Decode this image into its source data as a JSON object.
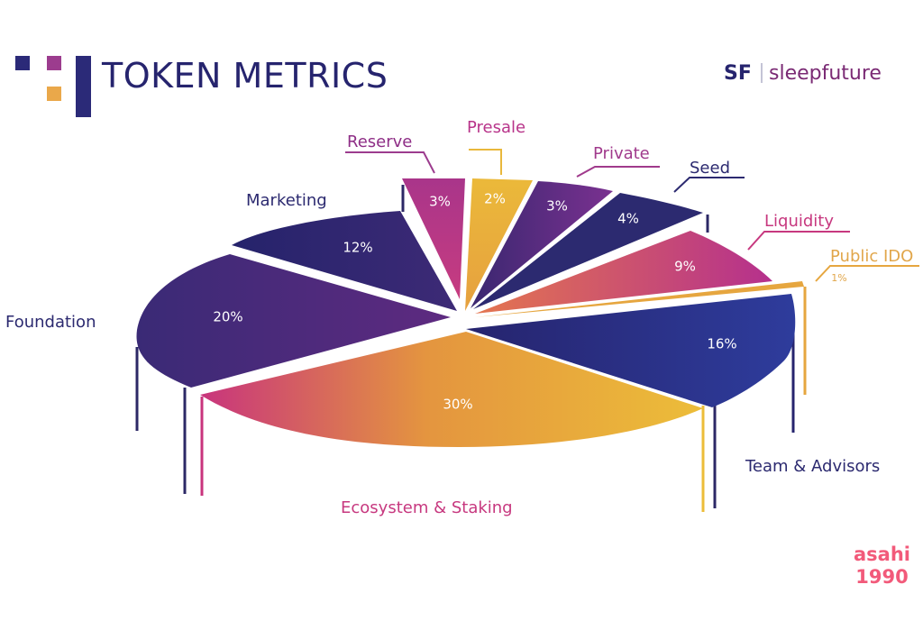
{
  "header": {
    "title": "TOKEN METRICS",
    "brand_mark": "SF",
    "brand_name": "sleepfuture"
  },
  "watermark": {
    "line1": "asahi",
    "line2": "1990"
  },
  "colors": {
    "navy": "#26246e",
    "purple": "#5b2d7a",
    "magenta": "#b8348a",
    "pink": "#d24e7e",
    "orange": "#e7a445",
    "yellow": "#e9b83c",
    "blue": "#2d3592"
  },
  "chart_data": {
    "type": "pie",
    "title": "TOKEN METRICS",
    "slices": [
      {
        "label": "Presale",
        "value": 2,
        "display": "2%",
        "color": "#e9b83c"
      },
      {
        "label": "Private",
        "value": 3,
        "display": "3%",
        "color": "#6a2f82"
      },
      {
        "label": "Seed",
        "value": 4,
        "display": "4%",
        "color": "#2e2c70"
      },
      {
        "label": "Liquidity",
        "value": 9,
        "display": "9%",
        "color": "#c0388a"
      },
      {
        "label": "Public IDO",
        "value": 1,
        "display": "1%",
        "color": "#e2a94a"
      },
      {
        "label": "Team & Advisors",
        "value": 16,
        "display": "16%",
        "color": "#2d3592"
      },
      {
        "label": "Ecosystem & Staking",
        "value": 30,
        "display": "30%",
        "color": "#e9b83c"
      },
      {
        "label": "Foundation",
        "value": 20,
        "display": "20%",
        "color": "#45297a"
      },
      {
        "label": "Marketing",
        "value": 12,
        "display": "12%",
        "color": "#2c2866"
      },
      {
        "label": "Reserve",
        "value": 3,
        "display": "3%",
        "color": "#b8348a"
      }
    ]
  }
}
